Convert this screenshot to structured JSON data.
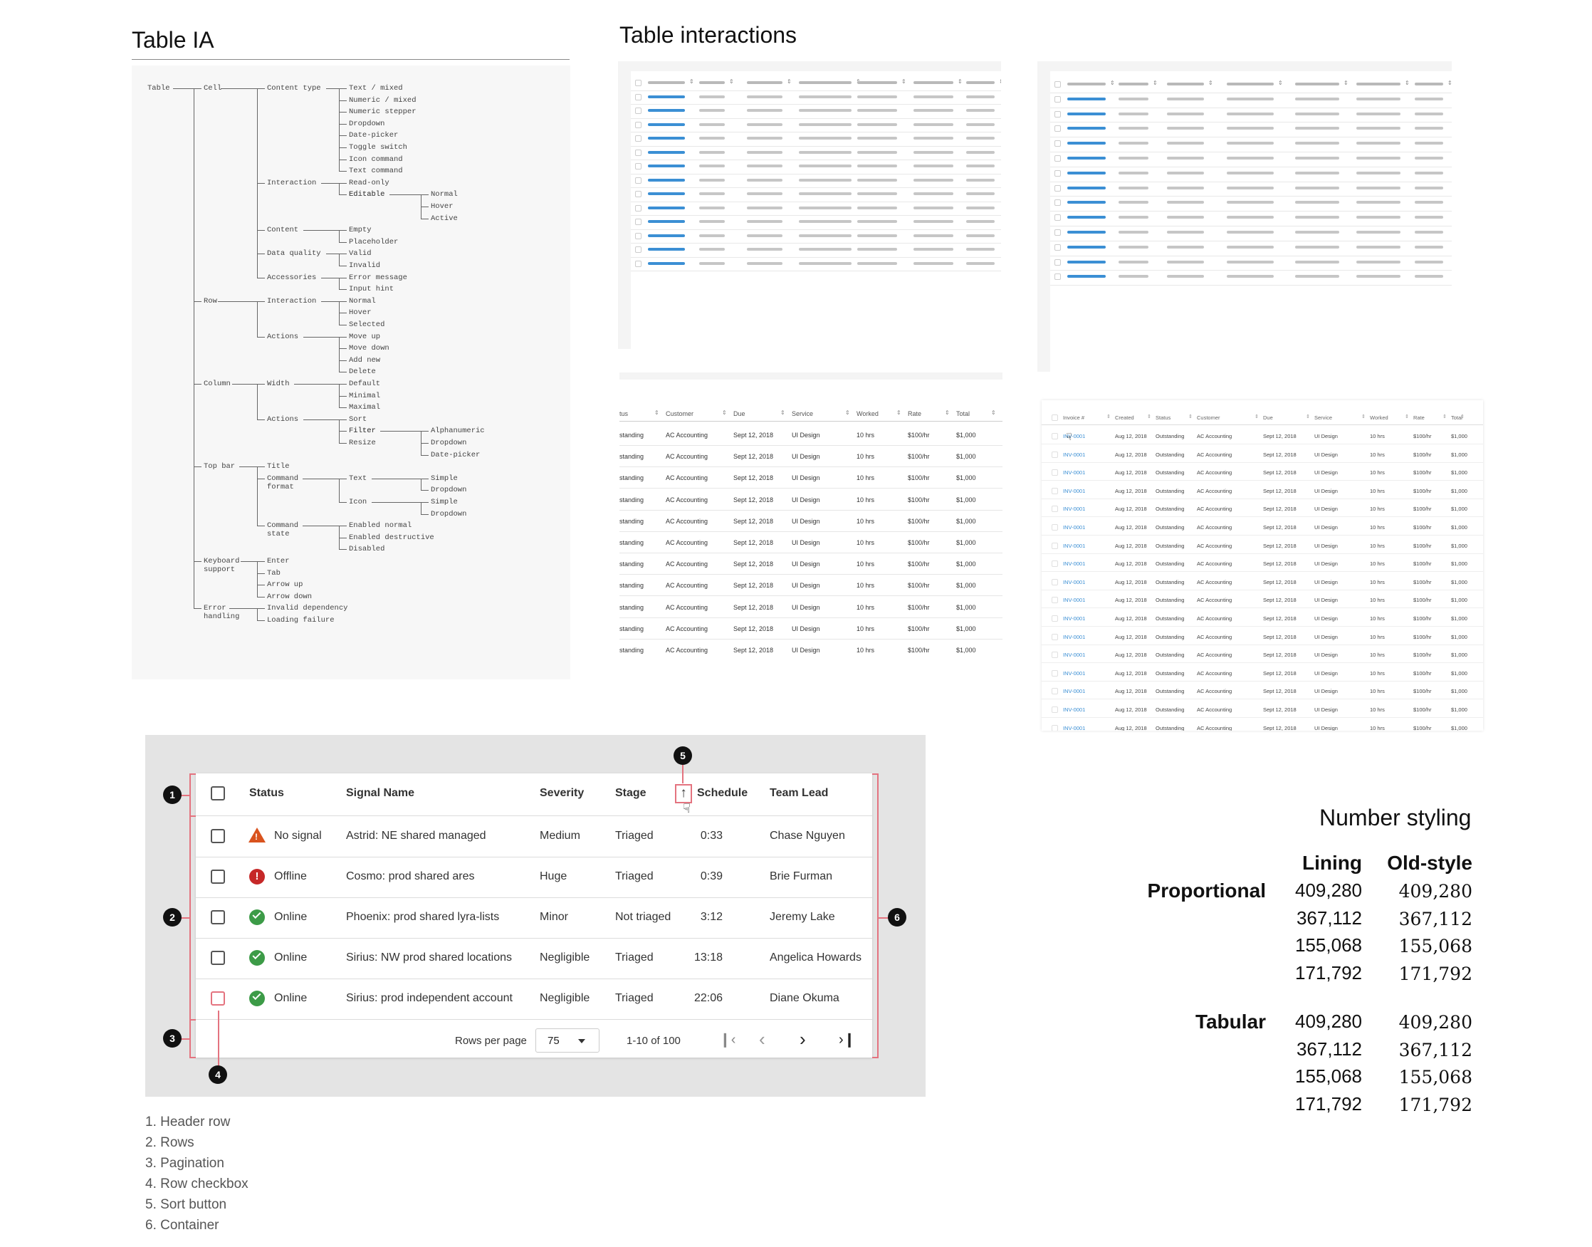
{
  "headings": {
    "table_ia": "Table IA",
    "table_interactions": "Table interactions",
    "number_styling": "Number styling"
  },
  "tree": {
    "root": "Table",
    "l1": [
      "Cell",
      "Row",
      "Column",
      "Top bar",
      "Keyboard support",
      "Error handling"
    ],
    "cell_content_type": [
      "Text / mixed",
      "Numeric / mixed",
      "Numeric stepper",
      "Dropdown",
      "Date-picker",
      "Toggle switch",
      "Icon command",
      "Text command"
    ],
    "cell_interaction": [
      "Read-only",
      "Editable"
    ],
    "editable_states": [
      "Normal",
      "Hover",
      "Active"
    ],
    "cell_content": [
      "Empty",
      "Placeholder"
    ],
    "cell_data_quality": [
      "Valid",
      "Invalid"
    ],
    "cell_accessories": [
      "Error message",
      "Input hint"
    ],
    "row_interaction": [
      "Normal",
      "Hover",
      "Selected"
    ],
    "row_actions": [
      "Move up",
      "Move down",
      "Add new",
      "Delete"
    ],
    "column_width": [
      "Default",
      "Minimal",
      "Maximal"
    ],
    "column_actions": [
      "Sort",
      "Filter",
      "Resize"
    ],
    "filter_types": [
      "Alphanumeric",
      "Dropdown",
      "Date-picker"
    ],
    "topbar_items": [
      "Title",
      "Command format",
      "Command state"
    ],
    "command_format": [
      "Text",
      "Icon"
    ],
    "text_format": [
      "Simple",
      "Dropdown"
    ],
    "icon_format": [
      "Simple",
      "Dropdown"
    ],
    "command_state": [
      "Enabled normal",
      "Enabled destructive",
      "Disabled"
    ],
    "keyboard": [
      "Enter",
      "Tab",
      "Arrow up",
      "Arrow down"
    ],
    "error": [
      "Invalid dependency",
      "Loading failure"
    ],
    "labels": {
      "cell_content_type": "Content type",
      "cell_interaction": "Interaction",
      "cell_content": "Content",
      "cell_data_quality": "Data quality",
      "cell_accessories": "Accessories",
      "row_interaction": "Interaction",
      "row_actions": "Actions",
      "column_width": "Width",
      "column_actions": "Actions"
    }
  },
  "mid_table": {
    "headers": [
      "tus",
      "Customer",
      "Due",
      "Service",
      "Worked",
      "Rate",
      "Total"
    ],
    "row": [
      "standing",
      "AC Accounting",
      "Sept 12, 2018",
      "UI Design",
      "10 hrs",
      "$100/hr",
      "$1,000"
    ],
    "row_count": 11
  },
  "right_table": {
    "headers": [
      "Invoice #",
      "Created",
      "Status",
      "Customer",
      "Due",
      "Service",
      "Worked",
      "Rate",
      "Total"
    ],
    "row": [
      "INV-0001",
      "Aug 12, 2018",
      "Outstanding",
      "AC Accounting",
      "Sept 12, 2018",
      "UI Design",
      "10 hrs",
      "$100/hr",
      "$1,000"
    ],
    "row_count": 17
  },
  "anatomy": {
    "columns": [
      "Status",
      "Signal Name",
      "Severity",
      "Stage",
      "Schedule",
      "Team Lead"
    ],
    "rows": [
      {
        "status": "No signal",
        "icon": "warning-icon",
        "signal": "Astrid: NE shared managed",
        "severity": "Medium",
        "stage": "Triaged",
        "schedule": "0:33",
        "lead": "Chase Nguyen"
      },
      {
        "status": "Offline",
        "icon": "error-icon",
        "signal": "Cosmo: prod shared ares",
        "severity": "Huge",
        "stage": "Triaged",
        "schedule": "0:39",
        "lead": "Brie Furman"
      },
      {
        "status": "Online",
        "icon": "check-icon",
        "signal": "Phoenix: prod shared lyra-lists",
        "severity": "Minor",
        "stage": "Not triaged",
        "schedule": "3:12",
        "lead": "Jeremy Lake"
      },
      {
        "status": "Online",
        "icon": "check-icon",
        "signal": "Sirius: NW prod shared locations",
        "severity": "Negligible",
        "stage": "Triaged",
        "schedule": "13:18",
        "lead": "Angelica Howards"
      },
      {
        "status": "Online",
        "icon": "check-icon",
        "signal": "Sirius: prod independent account",
        "severity": "Negligible",
        "stage": "Triaged",
        "schedule": "22:06",
        "lead": "Diane Okuma"
      }
    ],
    "pagination": {
      "rows_per_page_label": "Rows per page",
      "rows_per_page": "75",
      "range": "1-10 of 100"
    },
    "badges": [
      "1",
      "2",
      "3",
      "4",
      "5",
      "6"
    ],
    "legend": [
      "1. Header row",
      "2. Rows",
      "3. Pagination",
      "4. Row checkbox",
      "5. Sort button",
      "6. Container"
    ],
    "colors": {
      "accent_red": "#e4737f",
      "ok_green": "#3c9b47",
      "error_red": "#c62828",
      "warn_orange": "#d9531e"
    }
  },
  "number_styling": {
    "col_lining": "Lining",
    "col_oldstyle": "Old-style",
    "proportional_label": "Proportional",
    "tabular_label": "Tabular",
    "values": [
      "409,280",
      "367,112",
      "155,068",
      "171,792"
    ]
  }
}
